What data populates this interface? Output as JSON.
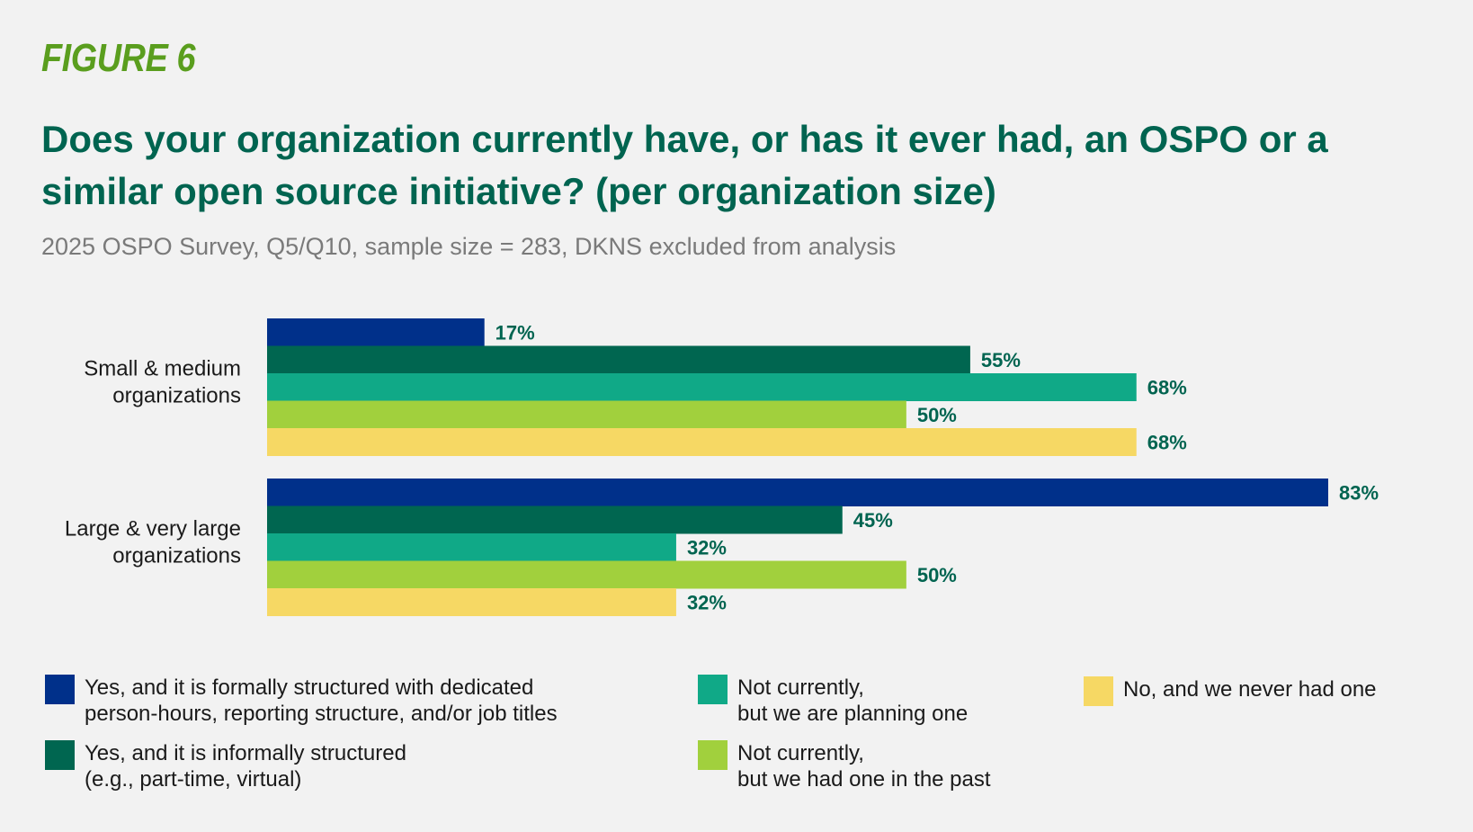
{
  "figure_label": "FIGURE 6",
  "title": "Does your organization currently have, or has it ever had, an OSPO or a similar open source initiative? (per organization size)",
  "subtitle": "2025 OSPO Survey, Q5/Q10, sample size = 283, DKNS excluded from analysis",
  "chart_data": {
    "type": "bar",
    "orientation": "horizontal",
    "categories": [
      "Small & medium organizations",
      "Large & very large organizations"
    ],
    "category_lines": [
      [
        "Small & medium",
        "organizations"
      ],
      [
        "Large & very large",
        "organizations"
      ]
    ],
    "series": [
      {
        "name": "Yes, and it is formally structured with dedicated person-hours, reporting structure, and/or job titles",
        "color": "#00308a",
        "values": [
          17,
          83
        ],
        "labels": [
          "17%",
          "83%"
        ]
      },
      {
        "name": "Yes, and it is informally structured (e.g., part-time, virtual)",
        "color": "#006650",
        "values": [
          55,
          45
        ],
        "labels": [
          "55%",
          "45%"
        ]
      },
      {
        "name": "Not currently, but we are planning one",
        "color": "#10a987",
        "values": [
          68,
          32
        ],
        "labels": [
          "68%",
          "32%"
        ]
      },
      {
        "name": "Not currently, but we had one in the past",
        "color": "#a1d03d",
        "values": [
          50,
          50
        ],
        "labels": [
          "50%",
          "50%"
        ]
      },
      {
        "name": "No, and we never had one",
        "color": "#f6d864",
        "values": [
          68,
          32
        ],
        "labels": [
          "68%",
          "32%"
        ]
      }
    ],
    "xlim": [
      0,
      83
    ],
    "grid": false,
    "legend_position": "bottom"
  },
  "legend": [
    {
      "text": "Yes, and it is formally structured with dedicated\nperson-hours, reporting structure, and/or job titles",
      "color": "#00308a"
    },
    {
      "text": "Yes, and it is informally structured\n(e.g., part-time, virtual)",
      "color": "#006650"
    },
    {
      "text": "Not currently,\nbut we are planning one",
      "color": "#10a987"
    },
    {
      "text": "Not currently,\nbut we had one in the past",
      "color": "#a1d03d"
    },
    {
      "text": "No, and we never had one",
      "color": "#f6d864"
    }
  ]
}
